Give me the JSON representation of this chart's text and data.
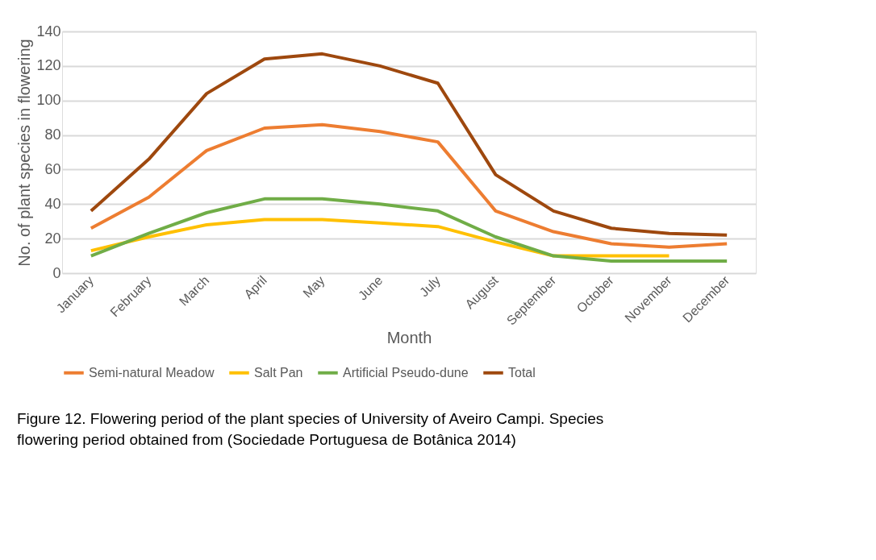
{
  "chart_data": {
    "type": "line",
    "xlabel": "Month",
    "ylabel": "No. of plant species in flowering",
    "categories": [
      "January",
      "February",
      "March",
      "April",
      "May",
      "June",
      "July",
      "August",
      "September",
      "October",
      "November",
      "December"
    ],
    "series": [
      {
        "name": "Semi-natural Meadow",
        "color": "#ed7d31",
        "values": [
          26,
          44,
          71,
          84,
          86,
          82,
          76,
          36,
          24,
          17,
          15,
          17
        ]
      },
      {
        "name": "Salt Pan",
        "color": "#ffc000",
        "values": [
          13,
          21,
          28,
          31,
          31,
          29,
          27,
          18,
          10,
          10,
          10,
          null
        ]
      },
      {
        "name": "Artificial Pseudo-dune",
        "color": "#70ad47",
        "values": [
          10,
          23,
          35,
          43,
          43,
          40,
          36,
          21,
          10,
          7,
          7,
          7
        ]
      },
      {
        "name": "Total",
        "color": "#9e480e",
        "values": [
          36,
          66,
          104,
          124,
          127,
          120,
          110,
          57,
          36,
          26,
          23,
          22
        ]
      }
    ],
    "ylim": [
      0,
      140
    ],
    "yticks": [
      0,
      20,
      40,
      60,
      80,
      100,
      120,
      140
    ],
    "grid": "y",
    "legend": "bottom",
    "marker": "none",
    "line_style": "solid",
    "annotations": [
      "Figure 12. Flowering period of the plant species of University of Aveiro Campi. Species",
      "flowering period obtained from (Sociedade Portuguesa de Botânica 2014)"
    ]
  }
}
